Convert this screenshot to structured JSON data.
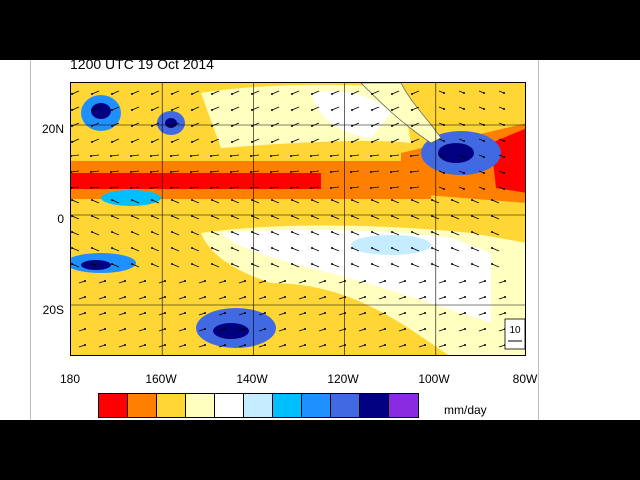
{
  "title": "1200 UTC 19 Oct 2014",
  "lat_labels": [
    "20N",
    "0",
    "20S"
  ],
  "lon_labels": [
    "180",
    "160W",
    "140W",
    "120W",
    "100W",
    "80W"
  ],
  "colorbar": {
    "colors": [
      "#ff0000",
      "#ff7f00",
      "#ffd633",
      "#ffffc0",
      "#ffffff",
      "#c6ecff",
      "#00bfff",
      "#1e90ff",
      "#4169e1",
      "#000080",
      "#8a2be2"
    ],
    "units": "mm/day"
  },
  "reference_vector": {
    "label": "10"
  },
  "precip_bands": {
    "heavy": "#ff0000",
    "moderate": "#ff7f00",
    "light": "#ffd633",
    "very_light": "#ffffc0",
    "dry": "#ffffff",
    "wet_light_blue": "#c6ecff",
    "wet_cyan": "#00bfff",
    "wet_blue": "#1e90ff",
    "wet_royal": "#4169e1",
    "wet_navy": "#000080"
  }
}
